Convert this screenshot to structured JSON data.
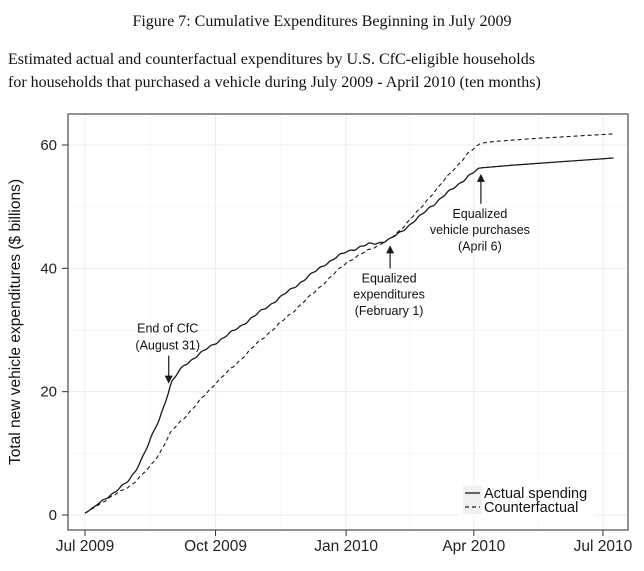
{
  "figure": {
    "title": "Figure 7: Cumulative Expenditures Beginning in July 2009",
    "subtitle_line1": "Estimated actual and counterfactual expenditures by U.S. CfC-eligible households",
    "subtitle_line2": "for households that purchased a vehicle during July 2009 - April 2010 (ten months)"
  },
  "chart_data": {
    "type": "line",
    "title": "Cumulative Expenditures Beginning in July 2009",
    "xlabel": "",
    "ylabel": "Total new vehicle expenditures ($ billions)",
    "x_unit": "days since 2009-07-01",
    "x_tick_days": [
      0,
      92,
      184,
      274,
      365
    ],
    "x_tick_labels": [
      "Jul 2009",
      "Oct 2009",
      "Jan 2010",
      "Apr 2010",
      "Jul 2010"
    ],
    "x_minor_tick_days": [
      46,
      138,
      229,
      319.5
    ],
    "y_ticks": [
      0,
      20,
      40,
      60
    ],
    "y_tick_labels": [
      "0",
      "20",
      "40",
      "60"
    ],
    "y_minor_ticks": [
      10,
      30,
      50
    ],
    "ylim": [
      -3.5,
      65.5
    ],
    "xlim_days": [
      -12,
      383
    ],
    "grid": true,
    "legend_position": "bottom-right",
    "series": [
      {
        "name": "Actual spending",
        "style": "solid",
        "points": [
          [
            0,
            0.3
          ],
          [
            6,
            1.2
          ],
          [
            10,
            1.9
          ],
          [
            15,
            2.8
          ],
          [
            20,
            3.6
          ],
          [
            26,
            4.6
          ],
          [
            31,
            5.6
          ],
          [
            36,
            7.4
          ],
          [
            41,
            9.6
          ],
          [
            45,
            11.6
          ],
          [
            49,
            13.8
          ],
          [
            52,
            15.3
          ],
          [
            56,
            18.0
          ],
          [
            61,
            21.5
          ],
          [
            66,
            23.2
          ],
          [
            70,
            24.3
          ],
          [
            80,
            26.0
          ],
          [
            92,
            27.9
          ],
          [
            107,
            30.2
          ],
          [
            122,
            32.7
          ],
          [
            137,
            35.2
          ],
          [
            153,
            37.9
          ],
          [
            168,
            40.5
          ],
          [
            184,
            42.7
          ],
          [
            192,
            43.3
          ],
          [
            200,
            43.9
          ],
          [
            208,
            44.2
          ],
          [
            215,
            44.7
          ],
          [
            222,
            45.8
          ],
          [
            229,
            47.1
          ],
          [
            236,
            48.4
          ],
          [
            243,
            49.9
          ],
          [
            250,
            51.2
          ],
          [
            258,
            52.7
          ],
          [
            264,
            53.8
          ],
          [
            270,
            54.9
          ],
          [
            275,
            55.7
          ],
          [
            279,
            56.3
          ],
          [
            300,
            56.7
          ],
          [
            330,
            57.2
          ],
          [
            373,
            57.9
          ]
        ]
      },
      {
        "name": "Counterfactual",
        "style": "dashed",
        "points": [
          [
            0,
            0.3
          ],
          [
            6,
            1.1
          ],
          [
            10,
            1.7
          ],
          [
            15,
            2.5
          ],
          [
            20,
            3.2
          ],
          [
            26,
            3.9
          ],
          [
            31,
            4.6
          ],
          [
            38,
            6.0
          ],
          [
            45,
            7.6
          ],
          [
            52,
            9.8
          ],
          [
            61,
            13.6
          ],
          [
            70,
            15.8
          ],
          [
            80,
            18.3
          ],
          [
            92,
            21.4
          ],
          [
            107,
            24.6
          ],
          [
            122,
            28.0
          ],
          [
            137,
            31.0
          ],
          [
            153,
            34.3
          ],
          [
            168,
            37.5
          ],
          [
            184,
            40.9
          ],
          [
            200,
            43.0
          ],
          [
            215,
            44.7
          ],
          [
            222,
            46.2
          ],
          [
            229,
            47.9
          ],
          [
            236,
            49.6
          ],
          [
            243,
            51.6
          ],
          [
            250,
            53.4
          ],
          [
            258,
            55.6
          ],
          [
            264,
            57.1
          ],
          [
            270,
            58.6
          ],
          [
            275,
            59.6
          ],
          [
            279,
            60.3
          ],
          [
            290,
            60.6
          ],
          [
            320,
            61.1
          ],
          [
            350,
            61.5
          ],
          [
            373,
            61.8
          ]
        ]
      }
    ],
    "annotations": [
      {
        "lines": [
          "End of CfC",
          "(August 31)"
        ],
        "direction": "down",
        "day": 59,
        "value": 20.5,
        "arrow_len": 28
      },
      {
        "lines": [
          "Equalized",
          "expenditures",
          "(February 1)"
        ],
        "direction": "up",
        "day": 215,
        "value": 44.7,
        "arrow_len": 23
      },
      {
        "lines": [
          "Equalized",
          "vehicle purchases",
          "(April 6)"
        ],
        "direction": "up",
        "day": 279,
        "value": 56.3,
        "arrow_len": 30
      }
    ],
    "legend_entries": [
      {
        "label": "Actual spending",
        "line": "solid"
      },
      {
        "label": "Counterfactual",
        "line": "dashed"
      }
    ]
  },
  "colors": {
    "line": "#1a1a1a",
    "grid_major": "#ececec",
    "grid_minor": "#f6f6f6",
    "panel_border": "#4a4a4a",
    "tick": "#333333",
    "legend_key_bg": "#f0f0f0",
    "background": "#ffffff"
  }
}
